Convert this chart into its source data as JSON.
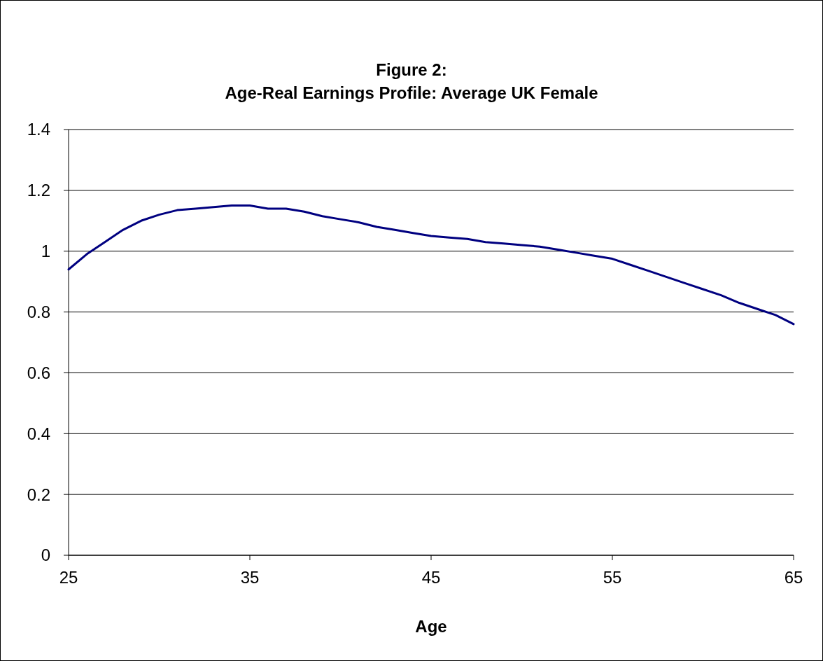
{
  "chart_data": {
    "type": "line",
    "title": "Figure 2:\nAge-Real Earnings Profile: Average UK Female",
    "xlabel": "Age",
    "x": [
      25,
      26,
      27,
      28,
      29,
      30,
      31,
      32,
      33,
      34,
      35,
      36,
      37,
      38,
      39,
      40,
      41,
      42,
      43,
      44,
      45,
      46,
      47,
      48,
      49,
      50,
      51,
      52,
      53,
      54,
      55,
      56,
      57,
      58,
      59,
      60,
      61,
      62,
      63,
      64,
      65
    ],
    "series": [
      {
        "color": "#000080",
        "values": [
          0.94,
          0.99,
          1.03,
          1.07,
          1.1,
          1.12,
          1.135,
          1.14,
          1.145,
          1.15,
          1.15,
          1.14,
          1.14,
          1.13,
          1.115,
          1.105,
          1.095,
          1.08,
          1.07,
          1.06,
          1.05,
          1.045,
          1.04,
          1.03,
          1.025,
          1.02,
          1.015,
          1.005,
          0.995,
          0.985,
          0.975,
          0.955,
          0.935,
          0.915,
          0.895,
          0.875,
          0.855,
          0.83,
          0.81,
          0.79,
          0.76
        ]
      }
    ],
    "xlim": [
      25,
      65
    ],
    "xticks": [
      25,
      35,
      45,
      55,
      65
    ],
    "ylim": [
      0,
      1.4
    ],
    "yticks": [
      0,
      {
        "value": 0.2,
        "label": "0.2"
      },
      {
        "value": 0.4,
        "label": "0.4"
      },
      {
        "value": 0.6,
        "label": "0.6"
      },
      {
        "value": 0.8,
        "label": "0.8"
      },
      1,
      {
        "value": 1.2,
        "label": "1.2"
      },
      {
        "value": 1.4,
        "label": "1.4"
      }
    ],
    "grid": "y",
    "marker": "none",
    "line_style": "solid"
  }
}
